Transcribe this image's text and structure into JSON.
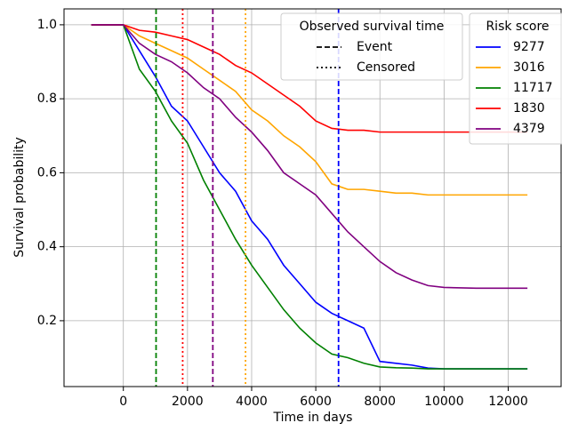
{
  "chart_data": {
    "type": "line",
    "xlabel": "Time in days",
    "ylabel": "Survival probability",
    "x": [
      -1000,
      0,
      500,
      1000,
      1500,
      2000,
      2500,
      3000,
      3500,
      4000,
      4500,
      5000,
      5500,
      6000,
      6500,
      7000,
      7500,
      8000,
      8500,
      9000,
      9500,
      10000,
      11000,
      12000,
      12600
    ],
    "series": [
      {
        "name": "9277",
        "color": "#0000ff",
        "values": [
          1.0,
          1.0,
          0.93,
          0.86,
          0.78,
          0.74,
          0.67,
          0.6,
          0.55,
          0.47,
          0.42,
          0.35,
          0.3,
          0.25,
          0.22,
          0.2,
          0.18,
          0.09,
          0.085,
          0.08,
          0.072,
          0.07,
          0.07,
          0.07,
          0.07
        ]
      },
      {
        "name": "3016",
        "color": "#ffa500",
        "values": [
          1.0,
          1.0,
          0.97,
          0.95,
          0.93,
          0.91,
          0.88,
          0.85,
          0.82,
          0.77,
          0.74,
          0.7,
          0.67,
          0.63,
          0.57,
          0.555,
          0.555,
          0.55,
          0.545,
          0.545,
          0.54,
          0.54,
          0.54,
          0.54,
          0.54
        ]
      },
      {
        "name": "11717",
        "color": "#008000",
        "values": [
          1.0,
          1.0,
          0.88,
          0.82,
          0.74,
          0.68,
          0.58,
          0.5,
          0.42,
          0.35,
          0.29,
          0.23,
          0.18,
          0.14,
          0.11,
          0.1,
          0.085,
          0.075,
          0.073,
          0.072,
          0.07,
          0.07,
          0.07,
          0.07,
          0.07
        ]
      },
      {
        "name": "1830",
        "color": "#ff0000",
        "values": [
          1.0,
          1.0,
          0.985,
          0.98,
          0.97,
          0.96,
          0.94,
          0.92,
          0.89,
          0.87,
          0.84,
          0.81,
          0.78,
          0.74,
          0.72,
          0.715,
          0.715,
          0.71,
          0.71,
          0.71,
          0.71,
          0.71,
          0.71,
          0.71,
          0.71
        ]
      },
      {
        "name": "4379",
        "color": "#800080",
        "values": [
          1.0,
          1.0,
          0.95,
          0.92,
          0.9,
          0.87,
          0.83,
          0.8,
          0.75,
          0.71,
          0.66,
          0.6,
          0.57,
          0.54,
          0.49,
          0.44,
          0.4,
          0.36,
          0.33,
          0.31,
          0.295,
          0.29,
          0.288,
          0.288,
          0.288
        ]
      }
    ],
    "vlines": [
      {
        "x": 1020,
        "color": "#008000",
        "style": "dashed"
      },
      {
        "x": 1850,
        "color": "#ff0000",
        "style": "dotted"
      },
      {
        "x": 2790,
        "color": "#800080",
        "style": "dashed"
      },
      {
        "x": 3810,
        "color": "#ffa500",
        "style": "dotted"
      },
      {
        "x": 6710,
        "color": "#0000ff",
        "style": "dashed"
      }
    ],
    "observed_legend": {
      "title": "Observed survival time",
      "entries": [
        {
          "label": "Event",
          "style": "dashed"
        },
        {
          "label": "Censored",
          "style": "dotted"
        }
      ]
    },
    "legend_title": "Risk score",
    "xlim": [
      -1850,
      13650
    ],
    "ylim": [
      0.022,
      1.043
    ],
    "xticks": [
      0,
      2000,
      4000,
      6000,
      8000,
      10000,
      12000
    ],
    "yticks": [
      0.2,
      0.4,
      0.6,
      0.8,
      {
        "value": 1.0,
        "label": "1.0"
      }
    ],
    "grid": true
  }
}
